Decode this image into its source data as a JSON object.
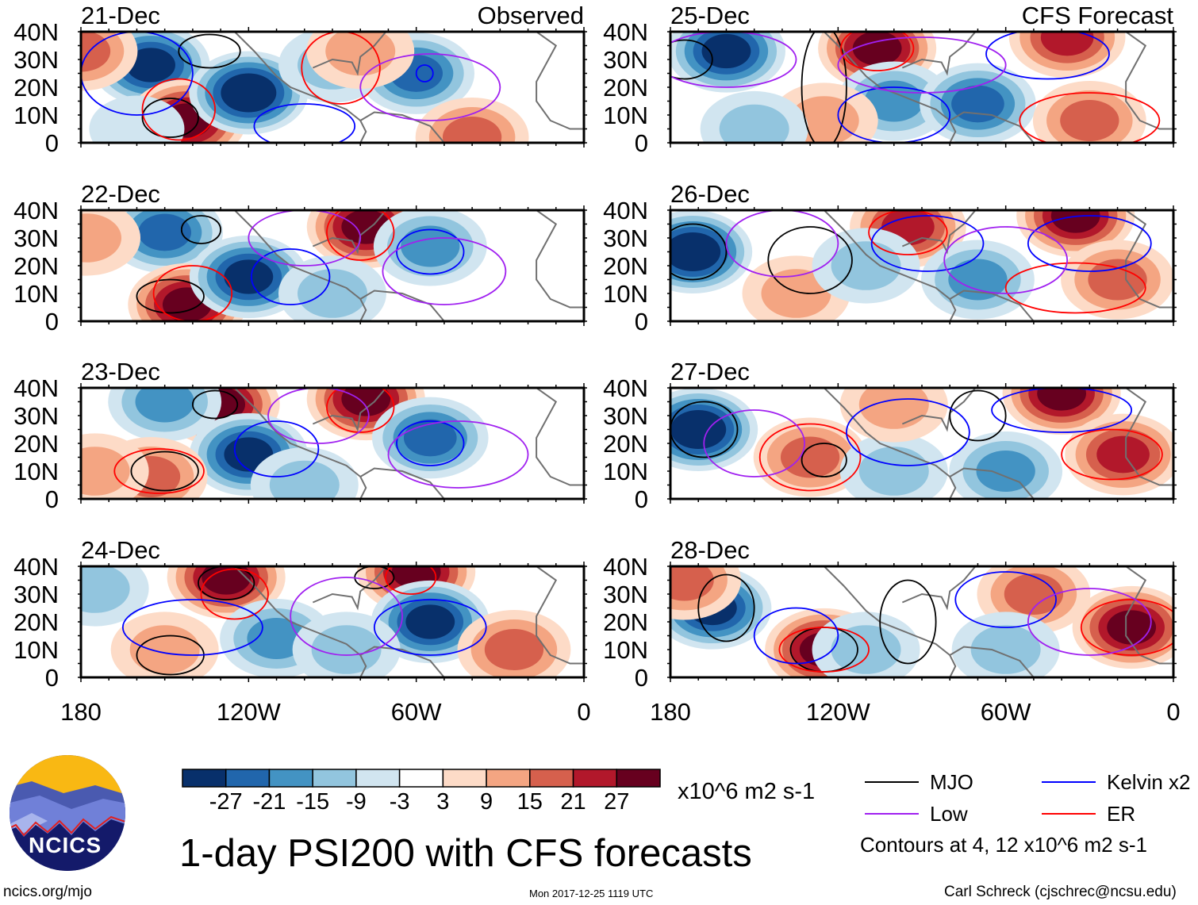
{
  "title": "1-day PSI200 with CFS forecasts",
  "footer": {
    "left": "ncics.org/mjo",
    "center": "Mon 2017-12-25 1119 UTC",
    "right": "Carl Schreck (cjschrec@ncsu.edu)"
  },
  "logo_text": "NCICS",
  "chart_data": {
    "type": "heatmap",
    "column_labels": [
      "Observed",
      "CFS Forecast"
    ],
    "lat_ticks": [
      "40N",
      "30N",
      "20N",
      "10N",
      "0"
    ],
    "lon_ticks": [
      "180",
      "120W",
      "60W",
      "0"
    ],
    "lon_range": [
      -180,
      0
    ],
    "lat_range": [
      0,
      40
    ],
    "colorbar": {
      "units": "x10^6 m2 s-1",
      "levels": [
        "-27",
        "-21",
        "-15",
        "-9",
        "-3",
        "3",
        "9",
        "15",
        "21",
        "27"
      ],
      "colors": [
        "#08306b",
        "#2166ac",
        "#4393c3",
        "#92c5de",
        "#d1e5f0",
        "#ffffff",
        "#fddbc7",
        "#f4a582",
        "#d6604d",
        "#b2182b",
        "#67001f"
      ]
    },
    "legend": {
      "items": [
        {
          "key": "mjo",
          "label": "MJO",
          "color": "#000000"
        },
        {
          "key": "kelvin",
          "label": "Kelvin x2",
          "color": "#0000ff"
        },
        {
          "key": "low",
          "label": "Low",
          "color": "#a020f0"
        },
        {
          "key": "er",
          "label": "ER",
          "color": "#ff0000"
        }
      ],
      "note": "Contours at 4, 12 x10^6 m2 s-1"
    },
    "panels": [
      {
        "date": "21-Dec",
        "column": 0,
        "anomalies": [
          [
            -155,
            28,
            -27
          ],
          [
            -180,
            33,
            15
          ],
          [
            -142,
            8,
            27
          ],
          [
            -120,
            18,
            -30
          ],
          [
            -60,
            25,
            -21
          ],
          [
            -90,
            28,
            -9
          ],
          [
            -80,
            33,
            9
          ],
          [
            -40,
            2,
            15
          ],
          [
            -160,
            5,
            -3
          ]
        ],
        "contours": [
          [
            "mjo",
            -134,
            33,
            11,
            6
          ],
          [
            "mjo",
            -148,
            9,
            10,
            7
          ],
          [
            "er",
            -145,
            12,
            13,
            11
          ],
          [
            "er",
            -87,
            27,
            14,
            13
          ],
          [
            "kelvin",
            -57,
            25,
            3,
            3
          ],
          [
            "kelvin",
            -100,
            6,
            18,
            8
          ],
          [
            "low",
            -55,
            20,
            25,
            12
          ],
          [
            "kelvin",
            -160,
            25,
            20,
            15
          ]
        ]
      },
      {
        "date": "22-Dec",
        "column": 0,
        "anomalies": [
          [
            -150,
            32,
            -21
          ],
          [
            -142,
            6,
            27
          ],
          [
            -120,
            16,
            -27
          ],
          [
            -78,
            34,
            27
          ],
          [
            -55,
            27,
            -15
          ],
          [
            -178,
            30,
            9
          ],
          [
            -90,
            10,
            -9
          ]
        ],
        "contours": [
          [
            "mjo",
            -137,
            33,
            7,
            5
          ],
          [
            "mjo",
            -148,
            9,
            12,
            6
          ],
          [
            "er",
            -140,
            10,
            14,
            10
          ],
          [
            "er",
            -80,
            32,
            12,
            10
          ],
          [
            "kelvin",
            -55,
            25,
            12,
            8
          ],
          [
            "kelvin",
            -105,
            16,
            14,
            10
          ],
          [
            "low",
            -50,
            18,
            22,
            12
          ],
          [
            "low",
            -100,
            30,
            20,
            10
          ]
        ]
      },
      {
        "date": "23-Dec",
        "column": 0,
        "anomalies": [
          [
            -130,
            34,
            27
          ],
          [
            -150,
            35,
            -15
          ],
          [
            -120,
            16,
            -27
          ],
          [
            -78,
            36,
            27
          ],
          [
            -55,
            22,
            -21
          ],
          [
            -155,
            8,
            15
          ],
          [
            -175,
            10,
            9
          ],
          [
            -100,
            5,
            -9
          ]
        ],
        "contours": [
          [
            "mjo",
            -132,
            34,
            8,
            5
          ],
          [
            "mjo",
            -150,
            10,
            12,
            7
          ],
          [
            "er",
            -152,
            10,
            16,
            8
          ],
          [
            "er",
            -80,
            33,
            12,
            9
          ],
          [
            "kelvin",
            -55,
            20,
            12,
            8
          ],
          [
            "kelvin",
            -110,
            18,
            15,
            10
          ],
          [
            "low",
            -45,
            16,
            25,
            12
          ],
          [
            "low",
            -95,
            30,
            18,
            10
          ]
        ]
      },
      {
        "date": "24-Dec",
        "column": 0,
        "anomalies": [
          [
            -128,
            36,
            27
          ],
          [
            -60,
            38,
            27
          ],
          [
            -55,
            20,
            -27
          ],
          [
            -110,
            14,
            -15
          ],
          [
            -85,
            10,
            -9
          ],
          [
            -150,
            10,
            9
          ],
          [
            -25,
            10,
            15
          ],
          [
            -175,
            32,
            -9
          ]
        ],
        "contours": [
          [
            "mjo",
            -128,
            34,
            10,
            6
          ],
          [
            "mjo",
            -148,
            8,
            12,
            7
          ],
          [
            "mjo",
            -75,
            36,
            7,
            4
          ],
          [
            "er",
            -125,
            30,
            12,
            9
          ],
          [
            "er",
            -62,
            36,
            9,
            6
          ],
          [
            "kelvin",
            -55,
            18,
            20,
            10
          ],
          [
            "kelvin",
            -140,
            18,
            25,
            10
          ],
          [
            "low",
            -85,
            22,
            20,
            14
          ]
        ]
      },
      {
        "date": "25-Dec",
        "column": 1,
        "anomalies": [
          [
            -160,
            33,
            -27
          ],
          [
            -106,
            34,
            27
          ],
          [
            -38,
            38,
            21
          ],
          [
            -100,
            15,
            -15
          ],
          [
            -70,
            14,
            -21
          ],
          [
            -30,
            8,
            15
          ],
          [
            -125,
            8,
            9
          ],
          [
            -150,
            5,
            -9
          ]
        ],
        "contours": [
          [
            "mjo",
            -175,
            30,
            10,
            7
          ],
          [
            "mjo",
            -125,
            20,
            8,
            22
          ],
          [
            "er",
            -106,
            34,
            13,
            8
          ],
          [
            "er",
            -30,
            8,
            25,
            10
          ],
          [
            "kelvin",
            -100,
            10,
            20,
            10
          ],
          [
            "kelvin",
            -45,
            32,
            22,
            9
          ],
          [
            "low",
            -90,
            28,
            30,
            10
          ],
          [
            "low",
            -160,
            30,
            25,
            10
          ]
        ]
      },
      {
        "date": "26-Dec",
        "column": 1,
        "anomalies": [
          [
            -172,
            25,
            -30
          ],
          [
            -95,
            34,
            21
          ],
          [
            -35,
            38,
            27
          ],
          [
            -70,
            15,
            -15
          ],
          [
            -135,
            10,
            9
          ],
          [
            -20,
            15,
            15
          ],
          [
            -110,
            20,
            -9
          ]
        ],
        "contours": [
          [
            "mjo",
            -172,
            25,
            12,
            10
          ],
          [
            "mjo",
            -130,
            22,
            15,
            12
          ],
          [
            "er",
            -95,
            32,
            14,
            8
          ],
          [
            "er",
            -35,
            12,
            25,
            9
          ],
          [
            "kelvin",
            -88,
            28,
            20,
            10
          ],
          [
            "kelvin",
            -30,
            28,
            22,
            10
          ],
          [
            "low",
            -140,
            28,
            20,
            12
          ],
          [
            "low",
            -60,
            22,
            22,
            12
          ]
        ]
      },
      {
        "date": "27-Dec",
        "column": 1,
        "anomalies": [
          [
            -170,
            25,
            -30
          ],
          [
            -130,
            15,
            15
          ],
          [
            -40,
            38,
            27
          ],
          [
            -18,
            16,
            21
          ],
          [
            -60,
            10,
            -15
          ],
          [
            -100,
            10,
            -9
          ],
          [
            -100,
            34,
            9
          ]
        ],
        "contours": [
          [
            "mjo",
            -168,
            25,
            12,
            10
          ],
          [
            "mjo",
            -125,
            14,
            8,
            6
          ],
          [
            "mjo",
            -70,
            30,
            10,
            9
          ],
          [
            "er",
            -130,
            15,
            18,
            12
          ],
          [
            "er",
            -22,
            16,
            18,
            9
          ],
          [
            "kelvin",
            -40,
            32,
            25,
            8
          ],
          [
            "kelvin",
            -95,
            24,
            22,
            12
          ],
          [
            "low",
            -150,
            20,
            18,
            12
          ]
        ]
      },
      {
        "date": "28-Dec",
        "column": 1,
        "anomalies": [
          [
            -165,
            25,
            -27
          ],
          [
            -125,
            10,
            27
          ],
          [
            -175,
            35,
            15
          ],
          [
            -15,
            18,
            27
          ],
          [
            -50,
            30,
            15
          ],
          [
            -110,
            10,
            -9
          ],
          [
            -60,
            10,
            -9
          ]
        ],
        "contours": [
          [
            "mjo",
            -160,
            25,
            10,
            12
          ],
          [
            "mjo",
            -125,
            10,
            12,
            8
          ],
          [
            "mjo",
            -95,
            20,
            10,
            15
          ],
          [
            "er",
            -125,
            10,
            16,
            8
          ],
          [
            "er",
            -15,
            18,
            18,
            10
          ],
          [
            "kelvin",
            -60,
            28,
            18,
            10
          ],
          [
            "kelvin",
            -135,
            15,
            15,
            10
          ],
          [
            "low",
            -30,
            20,
            22,
            12
          ]
        ]
      }
    ]
  }
}
